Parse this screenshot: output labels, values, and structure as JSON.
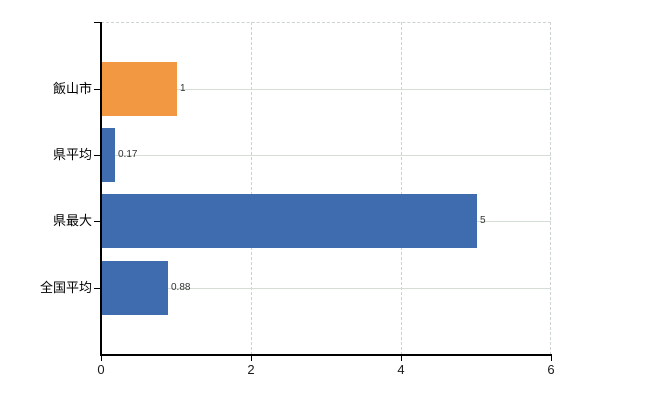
{
  "chart_data": {
    "type": "bar",
    "orientation": "horizontal",
    "title": "",
    "xlabel": "",
    "ylabel": "",
    "categories": [
      "飯山市",
      "県平均",
      "県最大",
      "全国平均"
    ],
    "values": [
      1,
      0.17,
      5,
      0.88
    ],
    "value_labels": [
      "1",
      "0.17",
      "5",
      "0.88"
    ],
    "bar_colors": [
      "#f29742",
      "#3e6cae",
      "#3e6cae",
      "#3e6cae"
    ],
    "xlim": [
      0,
      6
    ],
    "xticks": [
      0,
      2,
      4,
      6
    ],
    "xtick_labels": [
      "0",
      "2",
      "4",
      "6"
    ],
    "grid": true,
    "legend": false,
    "colors": {
      "axis": "#000000",
      "h_gridline": "#d5ded5",
      "v_gridline": "#c9d1dc",
      "border_dashed": "#cdd4cd",
      "category_text": "#000000",
      "tick_text": "#1a1a1a",
      "value_text": "#333333",
      "background": "#ffffff"
    }
  }
}
